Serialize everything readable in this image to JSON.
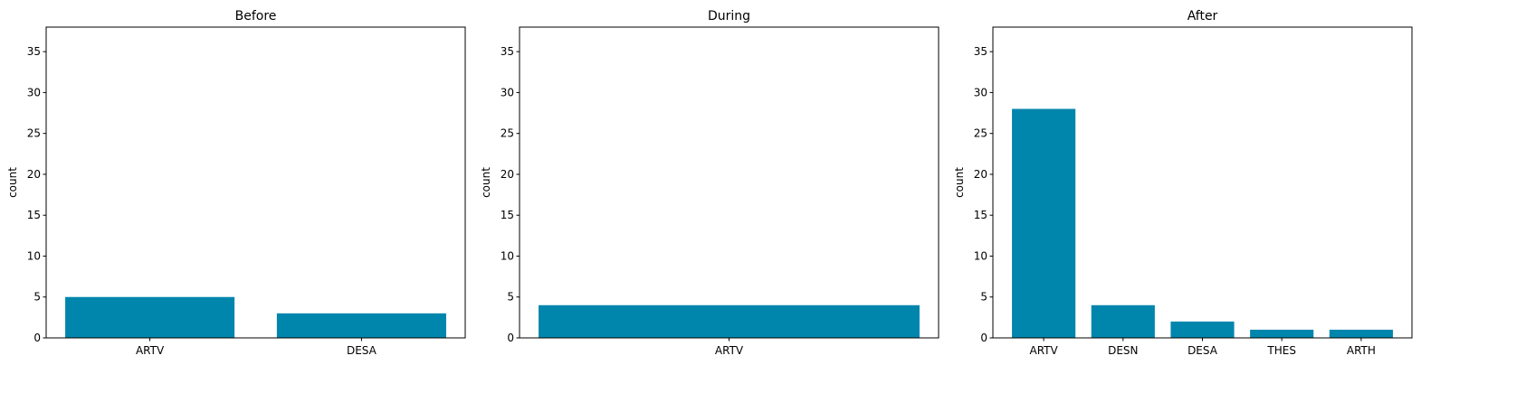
{
  "bar_color": "#0086AD",
  "chart_data": [
    {
      "type": "bar",
      "title": "Before",
      "ylabel": "count",
      "categories": [
        "ARTV",
        "DESA"
      ],
      "values": [
        5,
        3
      ],
      "ylim": [
        0,
        38
      ],
      "yticks": [
        0,
        5,
        10,
        15,
        20,
        25,
        30,
        35
      ]
    },
    {
      "type": "bar",
      "title": "During",
      "ylabel": "count",
      "categories": [
        "ARTV"
      ],
      "values": [
        4
      ],
      "ylim": [
        0,
        38
      ],
      "yticks": [
        0,
        5,
        10,
        15,
        20,
        25,
        30,
        35
      ]
    },
    {
      "type": "bar",
      "title": "After",
      "ylabel": "count",
      "categories": [
        "ARTV",
        "DESN",
        "DESA",
        "THES",
        "ARTH"
      ],
      "values": [
        28,
        4,
        2,
        1,
        1
      ],
      "ylim": [
        0,
        38
      ],
      "yticks": [
        0,
        5,
        10,
        15,
        20,
        25,
        30,
        35
      ]
    }
  ]
}
